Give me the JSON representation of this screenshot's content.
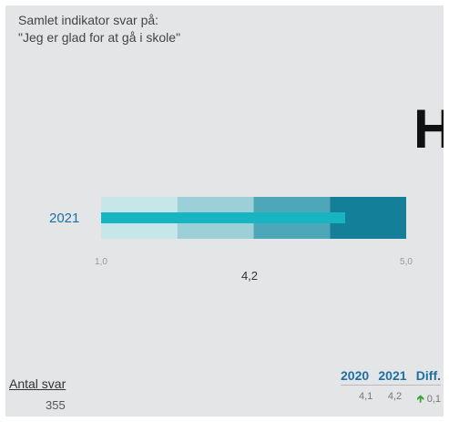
{
  "title_line1": "Samlet indikator svar på:",
  "title_line2": "\"Jeg er glad for at gå i skole\"",
  "corner_letter": "H",
  "colors": {
    "band1": "#c7e6ea",
    "band2": "#9ccfd8",
    "band3": "#4ea7b8",
    "band4": "#137f98",
    "value_bar": "#17b5c2"
  },
  "chart_data": {
    "type": "bar",
    "orientation": "horizontal",
    "title": "Samlet indikator svar på: \"Jeg er glad for at gå i skole\"",
    "categories": [
      "2021"
    ],
    "values": [
      4.2
    ],
    "value_label": "4,2",
    "xlim": [
      1.0,
      5.0
    ],
    "tick_labels": [
      "1,0",
      "5,0"
    ],
    "bands": [
      [
        1.0,
        2.0
      ],
      [
        2.0,
        3.0
      ],
      [
        3.0,
        4.0
      ],
      [
        4.0,
        5.0
      ]
    ],
    "grid": false,
    "legend": "none"
  },
  "responses": {
    "label": "Antal svar",
    "value": "355"
  },
  "comparison": {
    "headers": [
      "2020",
      "2021",
      "Diff."
    ],
    "values": [
      "4,1",
      "4,2",
      "0,1"
    ],
    "diff_icon": "up-arrow-icon"
  }
}
